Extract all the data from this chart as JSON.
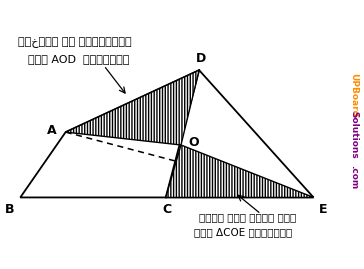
{
  "points": {
    "B": [
      0.05,
      0.18
    ],
    "A": [
      1.0,
      1.55
    ],
    "D": [
      3.8,
      2.85
    ],
    "E": [
      6.2,
      0.18
    ],
    "C": [
      3.1,
      0.18
    ],
    "O": [
      3.42,
      1.28
    ]
  },
  "title_line1": "भूخण्ड का अधिगृहीत",
  "title_line2": "भाग AOD  क्षेत्र",
  "bottom_line1": "बदले में दिया गया",
  "bottom_line2": "भाग ΔCOE क्षेत्र",
  "watermark_up": "UPBoard",
  "watermark_sol": "Solutions",
  "watermark_com": ".com",
  "background_color": "#ffffff",
  "line_color": "#000000",
  "xlim": [
    -0.3,
    7.2
  ],
  "ylim": [
    -0.6,
    3.6
  ]
}
